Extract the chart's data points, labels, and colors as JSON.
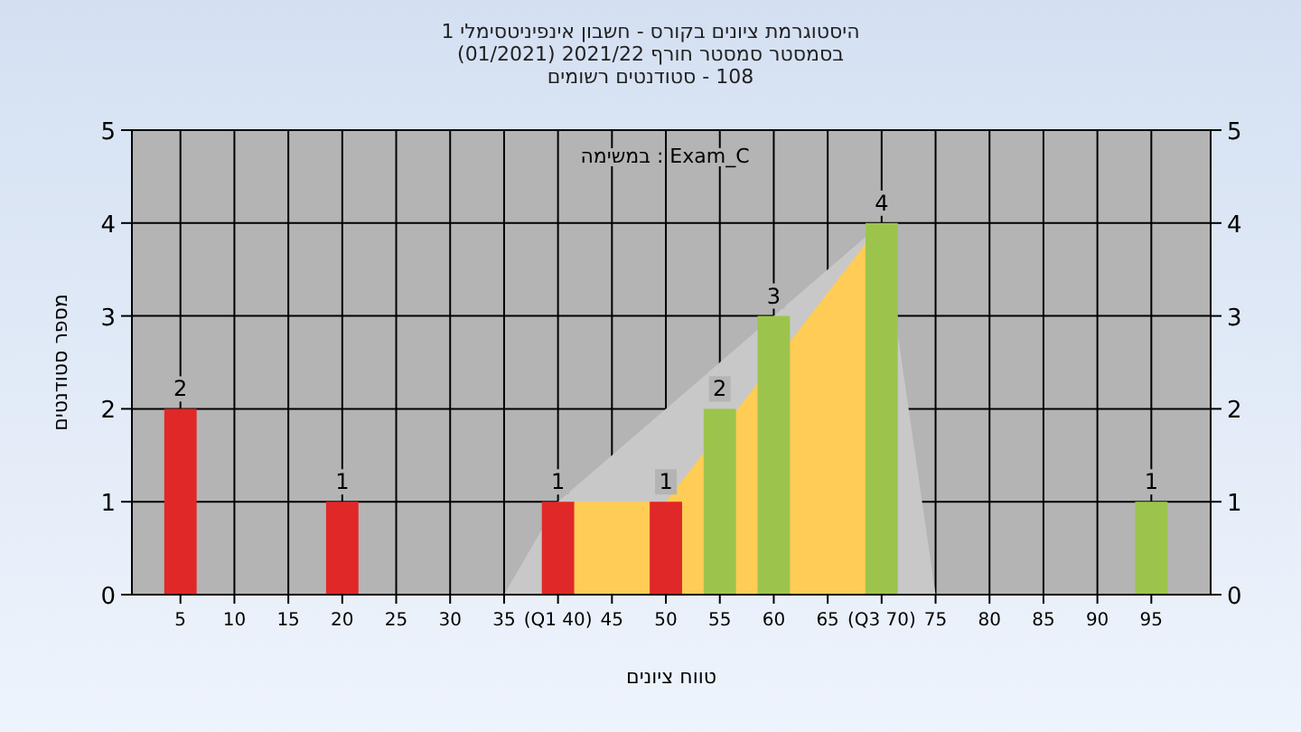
{
  "chart_data": {
    "type": "bar",
    "title": "היסטוגרמת ציונים בקורס - חשבון אינפיניטסימלי 1",
    "subtitle": "בסמסטר  סמסטר חורף 2021/22  (01/2021)\n108 - סטודנטים רשומים",
    "xlabel": "טווח ציונים",
    "ylabel": "מספר סטודנטים",
    "annotations": [
      "במשימה : Exam_C"
    ],
    "xlim": [
      0.5,
      100.5
    ],
    "xticks": [
      5,
      10,
      15,
      20,
      25,
      30,
      35,
      {
        "value": 40,
        "label": "(Q1 40)"
      },
      45,
      50,
      55,
      60,
      65,
      {
        "value": 70,
        "label": "(Q3 70)"
      },
      75,
      80,
      85,
      90,
      95
    ],
    "ylim": [
      0,
      5
    ],
    "yticks": [
      0,
      1,
      2,
      3,
      4,
      5
    ],
    "y2lim": [
      0,
      5
    ],
    "y2ticks": [
      0,
      1,
      2,
      3,
      4,
      5
    ],
    "grid": true,
    "series": [
      {
        "type": "area",
        "color": "#c8c8c8",
        "x": [
          35,
          40,
          70,
          75
        ],
        "values": [
          0,
          1,
          4,
          0
        ]
      },
      {
        "type": "area",
        "color": "#ffcc55",
        "x": [
          40,
          50,
          70
        ],
        "values": [
          1,
          1,
          4
        ]
      },
      {
        "x": [
          5,
          20,
          40,
          50,
          55,
          60,
          70,
          95
        ],
        "values": [
          2,
          1,
          1,
          1,
          2,
          3,
          4,
          1
        ],
        "value_labels": [
          "2",
          "1",
          "1",
          "1",
          "2",
          "3",
          "4",
          "1"
        ],
        "colors": [
          "#e02828",
          "#e02828",
          "#e02828",
          "#e02828",
          "#9cc44c",
          "#9cc44c",
          "#9cc44c",
          "#9cc44c"
        ]
      }
    ]
  }
}
